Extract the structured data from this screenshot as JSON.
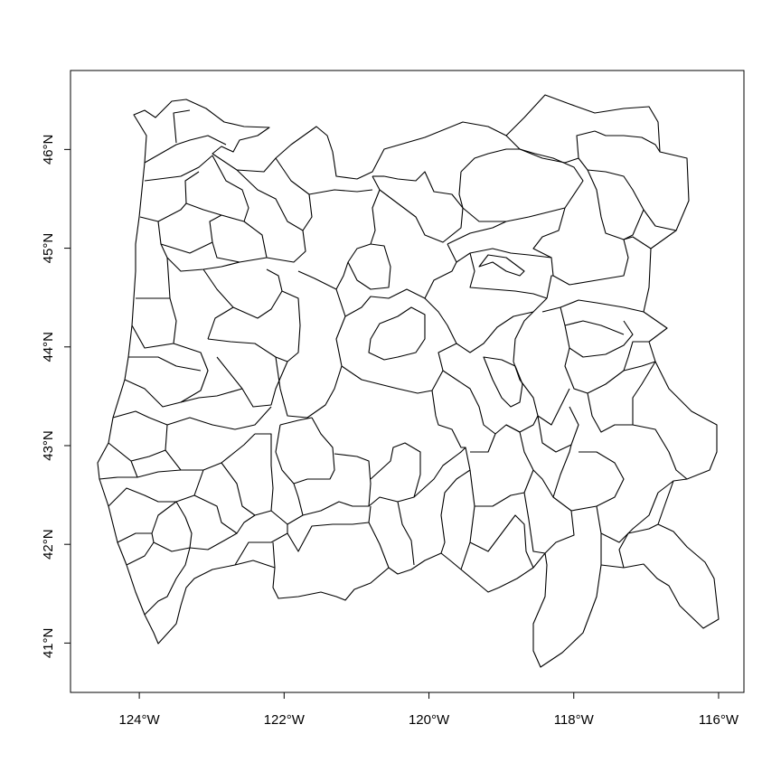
{
  "map": {
    "x_axis": {
      "ticks": [
        {
          "value": -124,
          "label": "124°W"
        },
        {
          "value": -122,
          "label": "122°W"
        },
        {
          "value": -120,
          "label": "120°W"
        },
        {
          "value": -118,
          "label": "118°W"
        },
        {
          "value": -116,
          "label": "116°W"
        }
      ]
    },
    "y_axis": {
      "ticks": [
        {
          "value": 41,
          "label": "41°N"
        },
        {
          "value": 42,
          "label": "42°N"
        },
        {
          "value": 43,
          "label": "43°N"
        },
        {
          "value": 44,
          "label": "44°N"
        },
        {
          "value": 45,
          "label": "45°N"
        },
        {
          "value": 46,
          "label": "46°N"
        }
      ]
    },
    "xlim": [
      -124.95,
      -115.65
    ],
    "ylim": [
      40.5,
      46.8
    ],
    "feature_style": {
      "stroke": "#000000",
      "fill": "none"
    }
  }
}
